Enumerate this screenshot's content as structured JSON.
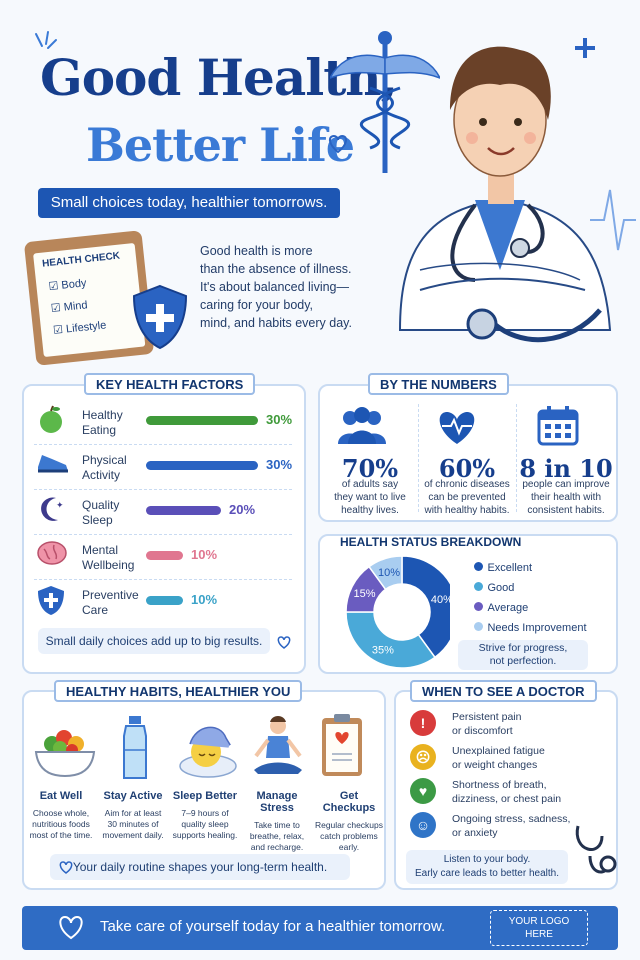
{
  "header": {
    "title_line1": "Good Health,",
    "title_line2": "Better Life",
    "tagline": "Small choices today, healthier tomorrows.",
    "intro_lines": [
      "Good health is more",
      "than the absence of illness.",
      "It's about balanced living—",
      "caring for your body,",
      "mind, and habits every day."
    ]
  },
  "clipboard": {
    "title": "HEALTH CHECK",
    "items": [
      "Body",
      "Mind",
      "Lifestyle"
    ]
  },
  "factors": {
    "title": "KEY HEALTH FACTORS",
    "items": [
      {
        "label1": "Healthy",
        "label2": "Eating",
        "value": "30%",
        "fraction": 0.3,
        "color": "#3f9a3a",
        "icon": "apple-icon"
      },
      {
        "label1": "Physical",
        "label2": "Activity",
        "value": "30%",
        "fraction": 0.3,
        "color": "#2a63c2",
        "icon": "sneaker-icon"
      },
      {
        "label1": "Quality",
        "label2": "Sleep",
        "value": "20%",
        "fraction": 0.2,
        "color": "#5a4fb8",
        "icon": "moon-icon"
      },
      {
        "label1": "Mental",
        "label2": "Wellbeing",
        "value": "10%",
        "fraction": 0.1,
        "color": "#e07690",
        "icon": "brain-icon"
      },
      {
        "label1": "Preventive",
        "label2": "Care",
        "value": "10%",
        "fraction": 0.1,
        "color": "#3aa2c8",
        "icon": "shield-icon"
      }
    ],
    "note": "Small daily choices add up to big results."
  },
  "numbers": {
    "title": "BY THE NUMBERS",
    "items": [
      {
        "big": "70%",
        "lines": [
          "of adults say",
          "they want to live",
          "healthy lives."
        ],
        "icon": "people-icon"
      },
      {
        "big": "60%",
        "lines": [
          "of chronic diseases",
          "can be prevented",
          "with healthy habits."
        ],
        "icon": "heart-pulse-icon"
      },
      {
        "big": "8 in 10",
        "lines": [
          "people can improve",
          "their health with",
          "consistent habits."
        ],
        "icon": "calendar-icon"
      }
    ]
  },
  "status": {
    "title": "HEALTH STATUS BREAKDOWN",
    "legend": [
      "Excellent",
      "Good",
      "Average",
      "Needs Improvement"
    ],
    "note_lines": [
      "Strive for progress,",
      "not perfection."
    ]
  },
  "chart_data": {
    "type": "pie",
    "title": "HEALTH STATUS BREAKDOWN",
    "categories": [
      "Excellent",
      "Good",
      "Average",
      "Needs Improvement"
    ],
    "values": [
      40,
      35,
      15,
      10
    ],
    "labels": [
      "40%",
      "35%",
      "15%",
      "10%"
    ],
    "colors": [
      "#1d56b3",
      "#4aa9d8",
      "#6a5cc0",
      "#a9cdf0"
    ],
    "legend": "right"
  },
  "habits": {
    "title": "HEALTHY HABITS, HEALTHIER YOU",
    "items": [
      {
        "title": "Eat Well",
        "lines": [
          "Choose whole,",
          "nutritious foods",
          "most of the time."
        ],
        "icon": "salad-bowl-icon"
      },
      {
        "title": "Stay Active",
        "lines": [
          "Aim for at least",
          "30 minutes of",
          "movement daily."
        ],
        "icon": "water-bottle-icon"
      },
      {
        "title": "Sleep Better",
        "lines": [
          "7–9 hours of",
          "quality sleep",
          "supports healing."
        ],
        "icon": "sleep-icon"
      },
      {
        "title": "Manage Stress",
        "lines": [
          "Take time to",
          "breathe, relax,",
          "and recharge."
        ],
        "icon": "meditation-icon"
      },
      {
        "title": "Get Checkups",
        "lines": [
          "Regular checkups",
          "catch problems",
          "early."
        ],
        "icon": "clipboard-icon"
      }
    ],
    "note": "Your daily routine shapes your long-term health."
  },
  "doctor": {
    "title": "WHEN TO SEE A DOCTOR",
    "items": [
      {
        "line1": "Persistent pain",
        "line2": "or discomfort",
        "color": "#d83b3b",
        "symbol": "!",
        "icon": "alert-icon"
      },
      {
        "line1": "Unexplained fatigue",
        "line2": "or weight changes",
        "color": "#e9b21f",
        "symbol": "☹",
        "icon": "tired-face-icon"
      },
      {
        "line1": "Shortness of breath,",
        "line2": "dizziness, or chest pain",
        "color": "#3c9a45",
        "symbol": "♥",
        "icon": "heart-icon"
      },
      {
        "line1": "Ongoing stress, sadness,",
        "line2": "or anxiety",
        "color": "#2f74c7",
        "symbol": "☺",
        "icon": "head-icon"
      }
    ],
    "note_lines": [
      "Listen to your body.",
      "Early care leads to better health."
    ]
  },
  "footer": {
    "text": "Take care of yourself today for a healthier tomorrow.",
    "logo_line1": "YOUR LOGO",
    "logo_line2": "HERE"
  }
}
